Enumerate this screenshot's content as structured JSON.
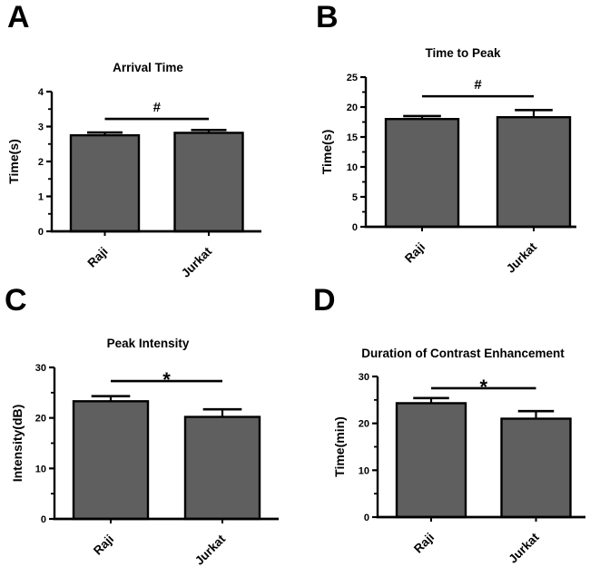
{
  "figure": {
    "colors": {
      "background": "#ffffff",
      "bar_fill": "#5f5f5f",
      "bar_stroke": "#000000",
      "axis": "#000000",
      "text": "#000000"
    },
    "group_labels": [
      "Raji",
      "Jurkat"
    ]
  },
  "chart_data": [
    {
      "panel_letter": "A",
      "type": "bar",
      "title": "Arrival Time",
      "xlabel": "",
      "ylabel": "Time(s)",
      "categories": [
        "Raji",
        "Jurkat"
      ],
      "values": [
        2.75,
        2.82
      ],
      "error_upper": [
        0.08,
        0.08
      ],
      "ylim": [
        0,
        4
      ],
      "yticks": [
        0,
        1,
        2,
        3,
        4
      ],
      "ytick_step": 1,
      "yminor_step": 0.5,
      "significance": {
        "symbol": "#",
        "y": 3.22,
        "between": [
          "Raji",
          "Jurkat"
        ]
      },
      "grid": false,
      "legend": false
    },
    {
      "panel_letter": "B",
      "type": "bar",
      "title": "Time to Peak",
      "xlabel": "",
      "ylabel": "Time(s)",
      "categories": [
        "Raji",
        "Jurkat"
      ],
      "values": [
        18.0,
        18.3
      ],
      "error_upper": [
        0.5,
        1.2
      ],
      "ylim": [
        0,
        25
      ],
      "yticks": [
        0,
        5,
        10,
        15,
        20,
        25
      ],
      "ytick_step": 5,
      "yminor_step": 2.5,
      "significance": {
        "symbol": "#",
        "y": 21.8,
        "between": [
          "Raji",
          "Jurkat"
        ]
      },
      "grid": false,
      "legend": false
    },
    {
      "panel_letter": "C",
      "type": "bar",
      "title": "Peak Intensity",
      "xlabel": "",
      "ylabel": "Intensity(dB)",
      "categories": [
        "Raji",
        "Jurkat"
      ],
      "values": [
        23.3,
        20.2
      ],
      "error_upper": [
        1.0,
        1.5
      ],
      "ylim": [
        0,
        30
      ],
      "yticks": [
        0,
        10,
        20,
        30
      ],
      "ytick_step": 10,
      "yminor_step": 5,
      "significance": {
        "symbol": "*",
        "y": 27.3,
        "between": [
          "Raji",
          "Jurkat"
        ]
      },
      "grid": false,
      "legend": false
    },
    {
      "panel_letter": "D",
      "type": "bar",
      "title": "Duration of Contrast Enhancement",
      "xlabel": "",
      "ylabel": "Time(min)",
      "categories": [
        "Raji",
        "Jurkat"
      ],
      "values": [
        24.3,
        21.0
      ],
      "error_upper": [
        1.1,
        1.6
      ],
      "ylim": [
        0,
        30
      ],
      "yticks": [
        0,
        10,
        20,
        30
      ],
      "ytick_step": 10,
      "yminor_step": 5,
      "significance": {
        "symbol": "*",
        "y": 27.5,
        "between": [
          "Raji",
          "Jurkat"
        ]
      },
      "grid": false,
      "legend": false
    }
  ]
}
